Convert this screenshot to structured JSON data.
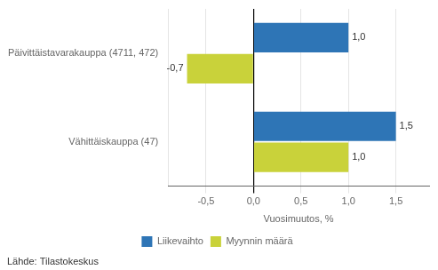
{
  "chart_data": {
    "type": "bar",
    "orientation": "horizontal",
    "categories": [
      "Päivittäistavarakauppa (4711, 472)",
      "Vähittäiskauppa (47)"
    ],
    "series": [
      {
        "name": "Liikevaihto",
        "color": "#2E75B6",
        "values": [
          1.0,
          1.5
        ],
        "value_labels": [
          "1,0",
          "1,5"
        ]
      },
      {
        "name": "Myynnin määrä",
        "color": "#C9D23A",
        "values": [
          -0.7,
          1.0
        ],
        "value_labels": [
          "-0,7",
          "1,0"
        ]
      }
    ],
    "xlabel": "Vuosimuutos, %",
    "xlim": [
      -0.9,
      1.85
    ],
    "xticks": [
      {
        "value": -0.5,
        "label": "-0,5"
      },
      {
        "value": 0.0,
        "label": "0,0"
      },
      {
        "value": 0.5,
        "label": "0,5"
      },
      {
        "value": 1.0,
        "label": "1,0"
      },
      {
        "value": 1.5,
        "label": "1,5"
      }
    ],
    "grid": true,
    "legend": "bottom",
    "data_labels": true,
    "annotations": [
      "Lähde: Tilastokeskus"
    ]
  }
}
